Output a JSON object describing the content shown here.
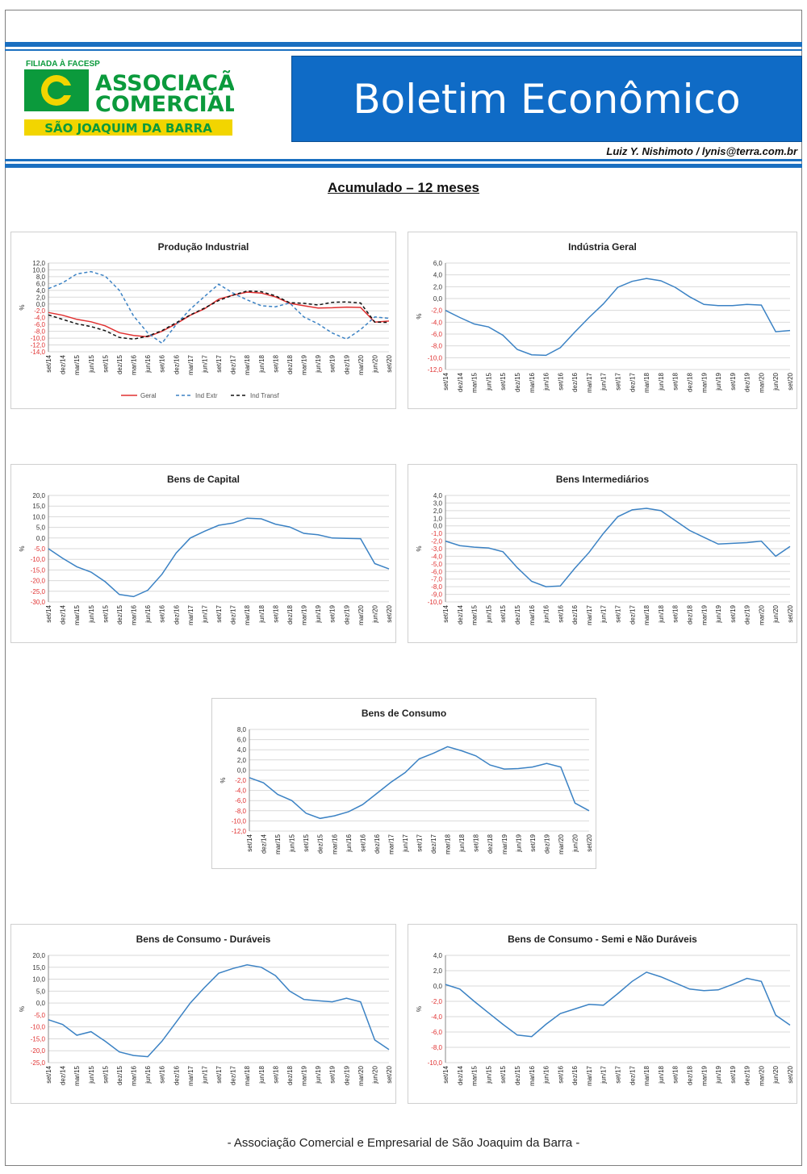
{
  "header": {
    "logo_top": "FILIADA À FACESP",
    "logo_line1": "ASSOCIAÇÃO",
    "logo_line2": "COMERCIAL",
    "logo_band": "SÃO JOAQUIM DA BARRA",
    "title": "Boletim Econômico",
    "author": "Luiz Y. Nishimoto / lynis@terra.com.br"
  },
  "section_title": "Acumulado – 12 meses",
  "footer": "- Associação Comercial e Empresarial de São Joaquim da Barra -",
  "colors": {
    "brand_blue": "#1a6fc0",
    "logo_green": "#0b9a3c",
    "logo_yellow": "#f2d500",
    "series_blue": "#3b82c4",
    "series_red": "#e03030",
    "neg_tick": "#e03030"
  },
  "chart_data": [
    {
      "type": "line",
      "title": "Produção Industrial",
      "ylabel": "%",
      "ylim": [
        -14,
        12
      ],
      "yticks": [
        "12,0",
        "10,0",
        "8,0",
        "6,0",
        "4,0",
        "2,0",
        "0,0",
        "-2,0",
        "-4,0",
        "-6,0",
        "-8,0",
        "-10,0",
        "-12,0",
        "-14,0"
      ],
      "categories": [
        "set/14",
        "dez/14",
        "mar/15",
        "jun/15",
        "set/15",
        "dez/15",
        "mar/16",
        "jun/16",
        "set/16",
        "dez/16",
        "mar/17",
        "jun/17",
        "set/17",
        "dez/17",
        "mar/18",
        "jun/18",
        "set/18",
        "dez/18",
        "mar/19",
        "jun/19",
        "set/19",
        "dez/19",
        "mar/20",
        "jun/20",
        "set/20"
      ],
      "legend": "bottom",
      "series": [
        {
          "name": "Geral",
          "color": "#e03030",
          "dash": "",
          "values": [
            -2.5,
            -3.3,
            -4.5,
            -5.2,
            -6.4,
            -8.4,
            -9.2,
            -9.6,
            -8.0,
            -5.8,
            -3.3,
            -1.4,
            1.4,
            2.6,
            3.5,
            3.2,
            2.1,
            0.2,
            -0.5,
            -1.2,
            -1.1,
            -0.9,
            -1.0,
            -5.3,
            -5.0
          ]
        },
        {
          "name": "Ind Extr",
          "color": "#3b82c4",
          "dash": "4 3",
          "values": [
            4.5,
            6.2,
            8.8,
            9.5,
            8.2,
            4.0,
            -3.5,
            -8.5,
            -11.5,
            -6.0,
            -1.5,
            2.2,
            5.8,
            3.2,
            1.2,
            -0.5,
            -0.8,
            0.3,
            -3.8,
            -5.8,
            -8.5,
            -10.3,
            -7.5,
            -3.8,
            -4.2
          ]
        },
        {
          "name": "Ind Transf",
          "color": "#111111",
          "dash": "4 3",
          "values": [
            -3.2,
            -4.5,
            -5.8,
            -6.6,
            -7.8,
            -9.8,
            -10.3,
            -9.4,
            -7.8,
            -5.5,
            -3.2,
            -1.2,
            1.0,
            2.6,
            3.8,
            3.6,
            2.4,
            0.4,
            0.2,
            -0.3,
            0.5,
            0.6,
            0.3,
            -5.3,
            -5.4
          ]
        }
      ]
    },
    {
      "type": "line",
      "title": "Indústria Geral",
      "ylabel": "%",
      "ylim": [
        -12,
        6
      ],
      "yticks": [
        "6,0",
        "4,0",
        "2,0",
        "0,0",
        "-2,0",
        "-4,0",
        "-6,0",
        "-8,0",
        "-10,0",
        "-12,0"
      ],
      "categories": [
        "set/14",
        "dez/14",
        "mar/15",
        "jun/15",
        "set/15",
        "dez/15",
        "mar/16",
        "jun/16",
        "set/16",
        "dez/16",
        "mar/17",
        "jun/17",
        "set/17",
        "dez/17",
        "mar/18",
        "jun/18",
        "set/18",
        "dez/18",
        "mar/19",
        "jun/19",
        "set/19",
        "dez/19",
        "mar/20",
        "jun/20",
        "set/20"
      ],
      "series": [
        {
          "color": "#3b82c4",
          "values": [
            -2.0,
            -3.2,
            -4.3,
            -4.8,
            -6.2,
            -8.6,
            -9.5,
            -9.6,
            -8.3,
            -5.7,
            -3.2,
            -0.9,
            1.9,
            2.9,
            3.4,
            3.0,
            1.9,
            0.3,
            -1.0,
            -1.2,
            -1.2,
            -1.0,
            -1.1,
            -5.6,
            -5.4
          ]
        }
      ]
    },
    {
      "type": "line",
      "title": "Bens de Capital",
      "ylabel": "%",
      "ylim": [
        -30,
        20
      ],
      "yticks": [
        "20,0",
        "15,0",
        "10,0",
        "5,0",
        "0,0",
        "-5,0",
        "-10,0",
        "-15,0",
        "-20,0",
        "-25,0",
        "-30,0"
      ],
      "categories": [
        "set/14",
        "dez/14",
        "mar/15",
        "jun/15",
        "set/15",
        "dez/15",
        "mar/16",
        "jun/16",
        "set/16",
        "dez/16",
        "mar/17",
        "jun/17",
        "set/17",
        "dez/17",
        "mar/18",
        "jun/18",
        "set/18",
        "dez/18",
        "mar/19",
        "jun/19",
        "set/19",
        "dez/19",
        "mar/20",
        "jun/20",
        "set/20"
      ],
      "series": [
        {
          "color": "#3b82c4",
          "values": [
            -5.0,
            -9.5,
            -13.5,
            -16.0,
            -20.5,
            -26.5,
            -27.5,
            -24.5,
            -17.0,
            -7.0,
            0.0,
            3.2,
            6.0,
            7.0,
            9.3,
            9.0,
            6.5,
            5.2,
            2.2,
            1.5,
            0.0,
            -0.2,
            -0.3,
            -12.0,
            -14.5
          ]
        }
      ]
    },
    {
      "type": "line",
      "title": "Bens Intermediários",
      "ylabel": "%",
      "ylim": [
        -10,
        4
      ],
      "yticks": [
        "4,0",
        "3,0",
        "2,0",
        "1,0",
        "0,0",
        "-1,0",
        "-2,0",
        "-3,0",
        "-4,0",
        "-5,0",
        "-6,0",
        "-7,0",
        "-8,0",
        "-9,0",
        "-10,0"
      ],
      "categories": [
        "set/14",
        "dez/14",
        "mar/15",
        "jun/15",
        "set/15",
        "dez/15",
        "mar/16",
        "jun/16",
        "set/16",
        "dez/16",
        "mar/17",
        "jun/17",
        "set/17",
        "dez/17",
        "mar/18",
        "jun/18",
        "set/18",
        "dez/18",
        "mar/19",
        "jun/19",
        "set/19",
        "dez/19",
        "mar/20",
        "jun/20",
        "set/20"
      ],
      "series": [
        {
          "color": "#3b82c4",
          "values": [
            -2.0,
            -2.6,
            -2.8,
            -2.9,
            -3.4,
            -5.5,
            -7.3,
            -8.0,
            -7.9,
            -5.6,
            -3.5,
            -1.0,
            1.2,
            2.1,
            2.3,
            2.0,
            0.7,
            -0.6,
            -1.5,
            -2.4,
            -2.3,
            -2.2,
            -2.0,
            -4.0,
            -2.7
          ]
        }
      ]
    },
    {
      "type": "line",
      "title": "Bens de Consumo",
      "ylabel": "%",
      "ylim": [
        -12,
        8
      ],
      "yticks": [
        "8,0",
        "6,0",
        "4,0",
        "2,0",
        "0,0",
        "-2,0",
        "-4,0",
        "-6,0",
        "-8,0",
        "-10,0",
        "-12,0"
      ],
      "categories": [
        "set/14",
        "dez/14",
        "mar/15",
        "jun/15",
        "set/15",
        "dez/15",
        "mar/16",
        "jun/16",
        "set/16",
        "dez/16",
        "mar/17",
        "jun/17",
        "set/17",
        "dez/17",
        "mar/18",
        "jun/18",
        "set/18",
        "dez/18",
        "mar/19",
        "jun/19",
        "set/19",
        "dez/19",
        "mar/20",
        "jun/20",
        "set/20"
      ],
      "series": [
        {
          "color": "#3b82c4",
          "values": [
            -1.5,
            -2.5,
            -4.8,
            -6.0,
            -8.5,
            -9.5,
            -9.0,
            -8.2,
            -6.8,
            -4.6,
            -2.4,
            -0.5,
            2.2,
            3.3,
            4.6,
            3.8,
            2.8,
            1.0,
            0.2,
            0.3,
            0.6,
            1.3,
            0.6,
            -6.5,
            -8.0
          ]
        }
      ]
    },
    {
      "type": "line",
      "title": "Bens de Consumo - Duráveis",
      "ylabel": "%",
      "ylim": [
        -25,
        20
      ],
      "yticks": [
        "20,0",
        "15,0",
        "10,0",
        "5,0",
        "0,0",
        "-5,0",
        "-10,0",
        "-15,0",
        "-20,0",
        "-25,0"
      ],
      "categories": [
        "set/14",
        "dez/14",
        "mar/15",
        "jun/15",
        "set/15",
        "dez/15",
        "mar/16",
        "jun/16",
        "set/16",
        "dez/16",
        "mar/17",
        "jun/17",
        "set/17",
        "dez/17",
        "mar/18",
        "jun/18",
        "set/18",
        "dez/18",
        "mar/19",
        "jun/19",
        "set/19",
        "dez/19",
        "mar/20",
        "jun/20",
        "set/20"
      ],
      "series": [
        {
          "color": "#3b82c4",
          "values": [
            -7.0,
            -9.0,
            -13.5,
            -12.0,
            -16.0,
            -20.5,
            -22.0,
            -22.5,
            -16.0,
            -8.0,
            0.0,
            6.5,
            12.5,
            14.5,
            16.0,
            15.0,
            11.5,
            5.0,
            1.5,
            1.0,
            0.5,
            2.0,
            0.5,
            -15.5,
            -19.5
          ]
        }
      ]
    },
    {
      "type": "line",
      "title": "Bens de Consumo - Semi e Não Duráveis",
      "ylabel": "%",
      "ylim": [
        -10,
        4
      ],
      "yticks": [
        "4,0",
        "2,0",
        "0,0",
        "-2,0",
        "-4,0",
        "-6,0",
        "-8,0",
        "-10,0"
      ],
      "categories": [
        "set/14",
        "dez/14",
        "mar/15",
        "jun/15",
        "set/15",
        "dez/15",
        "mar/16",
        "jun/16",
        "set/16",
        "dez/16",
        "mar/17",
        "jun/17",
        "set/17",
        "dez/17",
        "mar/18",
        "jun/18",
        "set/18",
        "dez/18",
        "mar/19",
        "jun/19",
        "set/19",
        "dez/19",
        "mar/20",
        "jun/20",
        "set/20"
      ],
      "series": [
        {
          "color": "#3b82c4",
          "values": [
            0.2,
            -0.4,
            -2.0,
            -3.5,
            -5.0,
            -6.4,
            -6.6,
            -5.0,
            -3.6,
            -3.0,
            -2.4,
            -2.5,
            -1.0,
            0.6,
            1.8,
            1.2,
            0.4,
            -0.4,
            -0.6,
            -0.5,
            0.2,
            1.0,
            0.6,
            -3.8,
            -5.1
          ]
        }
      ]
    }
  ]
}
